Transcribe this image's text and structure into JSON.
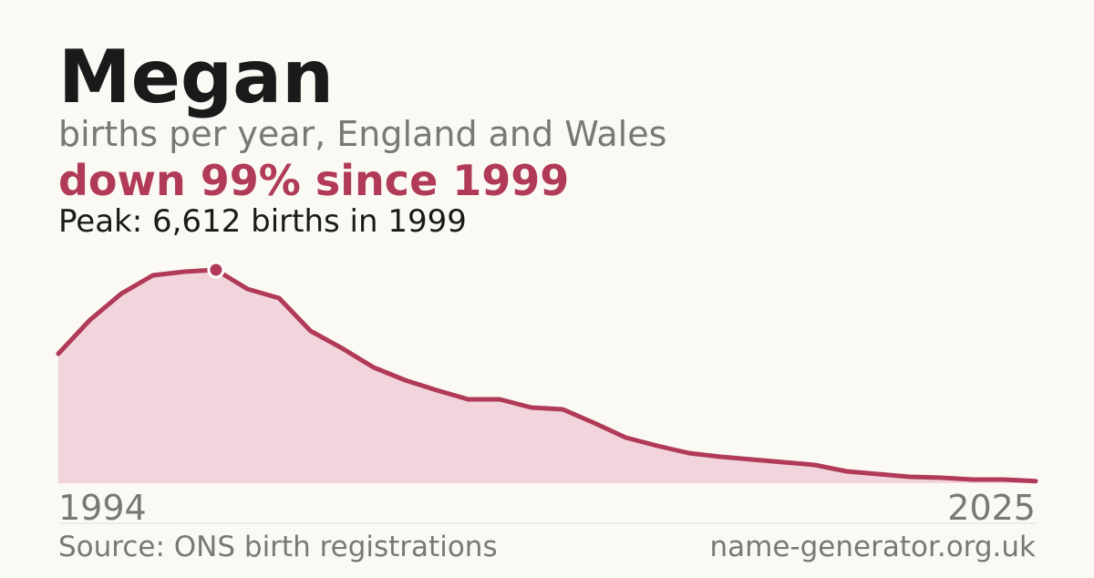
{
  "chart_data": {
    "type": "area",
    "title": "Megan",
    "subtitle": "births per year, England and Wales",
    "headline": "down 99% since 1999",
    "peak_note": "Peak: 6,612 births in 1999",
    "source": "Source: ONS birth registrations",
    "site": "name-generator.org.uk",
    "x": [
      1994,
      1995,
      1996,
      1997,
      1998,
      1999,
      2000,
      2001,
      2002,
      2003,
      2004,
      2005,
      2006,
      2007,
      2008,
      2009,
      2010,
      2011,
      2012,
      2013,
      2014,
      2015,
      2016,
      2017,
      2018,
      2019,
      2020,
      2021,
      2022,
      2023,
      2024,
      2025
    ],
    "values": [
      4013,
      5058,
      5877,
      6443,
      6556,
      6612,
      6019,
      5736,
      4719,
      4182,
      3589,
      3193,
      2882,
      2600,
      2600,
      2345,
      2289,
      1865,
      1413,
      1159,
      933,
      820,
      735,
      650,
      565,
      367,
      283,
      198,
      170,
      113,
      113,
      66
    ],
    "peak_index": 5,
    "color": "#b03a58",
    "fill_color": "#f2d5dc",
    "xlim": [
      1994,
      2025
    ],
    "xticks": [
      1994,
      2025
    ],
    "ylim": [
      0,
      6612
    ]
  }
}
